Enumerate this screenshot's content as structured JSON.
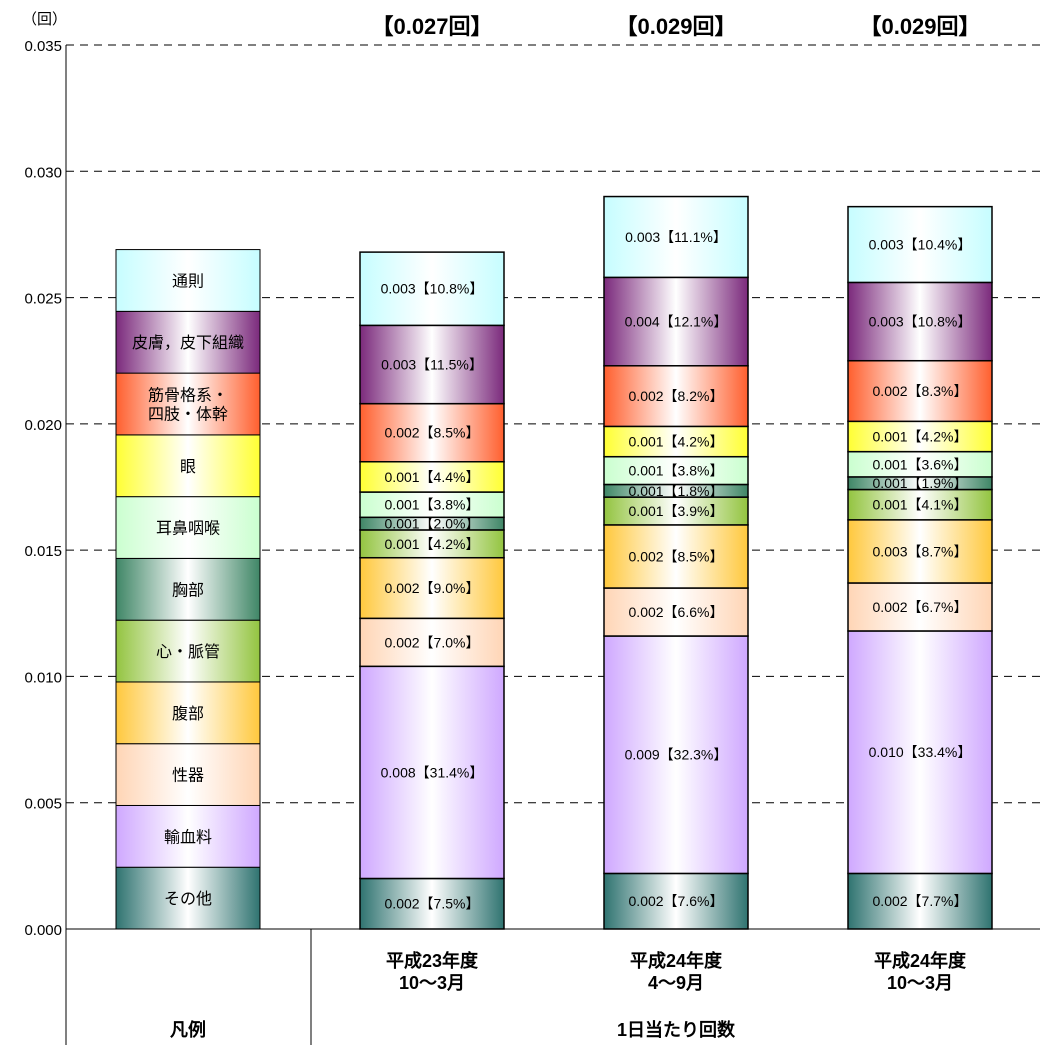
{
  "chart_data": {
    "type": "bar",
    "stacked": true,
    "y_unit_label": "（回）",
    "ylim": [
      0,
      0.035
    ],
    "yticks": [
      "0.000",
      "0.005",
      "0.010",
      "0.015",
      "0.020",
      "0.025",
      "0.030",
      "0.035"
    ],
    "grid": true,
    "legend_title": "凡例",
    "legend_items": [
      {
        "label": "通則",
        "color": "#c6fdff"
      },
      {
        "label": "皮膚，皮下組織",
        "color": "#7b2a7c"
      },
      {
        "label": "筋骨格系・\n四肢・体幹",
        "color": "#ff5f2e"
      },
      {
        "label": "眼",
        "color": "#ffff33"
      },
      {
        "label": "耳鼻咽喉",
        "color": "#caffcf"
      },
      {
        "label": "胸部",
        "color": "#3f8666"
      },
      {
        "label": "心・脈管",
        "color": "#93c440"
      },
      {
        "label": "腹部",
        "color": "#ffc83d"
      },
      {
        "label": "性器",
        "color": "#ffd5b5"
      },
      {
        "label": "輸血料",
        "color": "#cfa8ff"
      },
      {
        "label": "その他",
        "color": "#2f7370"
      }
    ],
    "categories": [
      "平成23年度\n10～3月",
      "平成24年度\n4～9月",
      "平成24年度\n10～3月"
    ],
    "totals": [
      "【0.027回】",
      "【0.029回】",
      "【0.029回】"
    ],
    "x_group_label": "1日当たり回数",
    "series": [
      {
        "name": "通則",
        "values": [
          0.0029,
          0.0032,
          0.003
        ],
        "labels": [
          "0.003【10.8%】",
          "0.003【11.1%】",
          "0.003【10.4%】"
        ]
      },
      {
        "name": "皮膚，皮下組織",
        "values": [
          0.0031,
          0.0035,
          0.0031
        ],
        "labels": [
          "0.003【11.5%】",
          "0.004【12.1%】",
          "0.003【10.8%】"
        ]
      },
      {
        "name": "筋骨格系・四肢・体幹",
        "values": [
          0.0023,
          0.0024,
          0.0024
        ],
        "labels": [
          "0.002【8.5%】",
          "0.002【8.2%】",
          "0.002【8.3%】"
        ]
      },
      {
        "name": "眼",
        "values": [
          0.0012,
          0.0012,
          0.0012
        ],
        "labels": [
          "0.001【4.4%】",
          "0.001【4.2%】",
          "0.001【4.2%】"
        ]
      },
      {
        "name": "耳鼻咽喉",
        "values": [
          0.001,
          0.0011,
          0.001
        ],
        "labels": [
          "0.001【3.8%】",
          "0.001【3.8%】",
          "0.001【3.6%】"
        ]
      },
      {
        "name": "胸部",
        "values": [
          0.0005,
          0.0005,
          0.0005
        ],
        "labels": [
          "0.001【2.0%】",
          "0.001【1.8%】",
          "0.001【1.9%】"
        ]
      },
      {
        "name": "心・脈管",
        "values": [
          0.0011,
          0.0011,
          0.0012
        ],
        "labels": [
          "0.001【4.2%】",
          "0.001【3.9%】",
          "0.001【4.1%】"
        ]
      },
      {
        "name": "腹部",
        "values": [
          0.0024,
          0.0025,
          0.0025
        ],
        "labels": [
          "0.002【9.0%】",
          "0.002【8.5%】",
          "0.003【8.7%】"
        ]
      },
      {
        "name": "性器",
        "values": [
          0.0019,
          0.0019,
          0.0019
        ],
        "labels": [
          "0.002【7.0%】",
          "0.002【6.6%】",
          "0.002【6.7%】"
        ]
      },
      {
        "name": "輸血料",
        "values": [
          0.0084,
          0.0094,
          0.0096
        ],
        "labels": [
          "0.008【31.4%】",
          "0.009【32.3%】",
          "0.010【33.4%】"
        ]
      },
      {
        "name": "その他",
        "values": [
          0.002,
          0.0022,
          0.0022
        ],
        "labels": [
          "0.002【7.5%】",
          "0.002【7.6%】",
          "0.002【7.7%】"
        ]
      }
    ]
  }
}
